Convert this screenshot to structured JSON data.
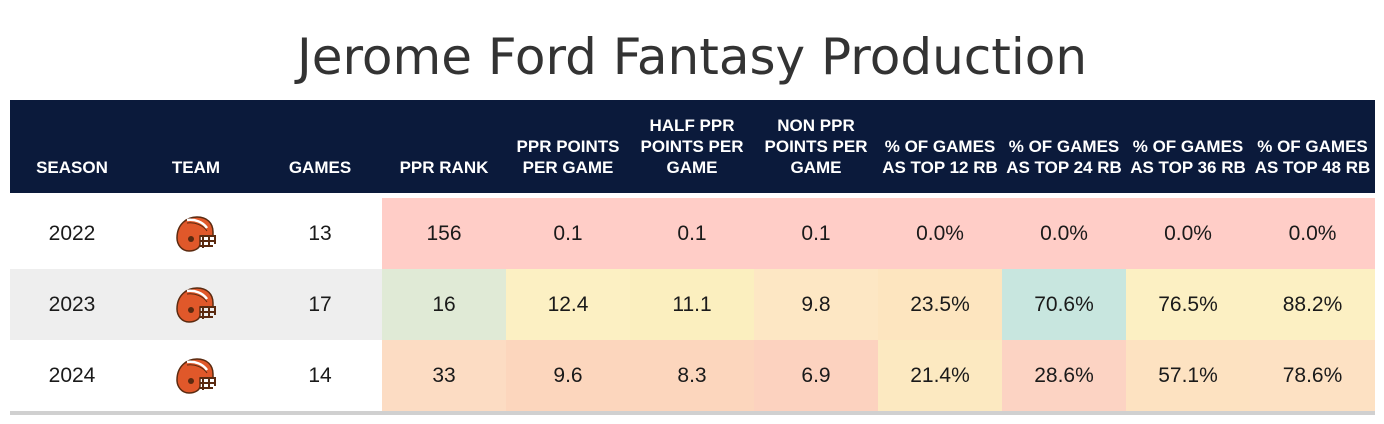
{
  "title": "Jerome Ford Fantasy Production",
  "colors": {
    "header_bg": "#0b1a3b",
    "header_text": "#ffffff",
    "helmet_orange": "#e0582a",
    "helmet_brown": "#5a2a10"
  },
  "columns": [
    "SEASON",
    "TEAM",
    "GAMES",
    "PPR RANK",
    "PPR POINTS PER GAME",
    "HALF PPR POINTS PER GAME",
    "NON PPR POINTS PER GAME",
    "% OF GAMES AS TOP 12 RB",
    "% OF GAMES AS TOP 24 RB",
    "% OF GAMES AS TOP 36 RB",
    "% OF GAMES AS TOP 48 RB"
  ],
  "rows": [
    {
      "season": "2022",
      "team_icon": "browns-helmet-icon",
      "games": "13",
      "ppr_rank": "156",
      "ppr_ppg": "0.1",
      "half_ppr_ppg": "0.1",
      "non_ppr_ppg": "0.1",
      "top12": "0.0%",
      "top24": "0.0%",
      "top36": "0.0%",
      "top48": "0.0%"
    },
    {
      "season": "2023",
      "team_icon": "browns-helmet-icon",
      "games": "17",
      "ppr_rank": "16",
      "ppr_ppg": "12.4",
      "half_ppr_ppg": "11.1",
      "non_ppr_ppg": "9.8",
      "top12": "23.5%",
      "top24": "70.6%",
      "top36": "76.5%",
      "top48": "88.2%"
    },
    {
      "season": "2024",
      "team_icon": "browns-helmet-icon",
      "games": "14",
      "ppr_rank": "33",
      "ppr_ppg": "9.6",
      "half_ppr_ppg": "8.3",
      "non_ppr_ppg": "6.9",
      "top12": "21.4%",
      "top24": "28.6%",
      "top36": "57.1%",
      "top48": "78.6%"
    }
  ],
  "chart_data": {
    "type": "table",
    "title": "Jerome Ford Fantasy Production",
    "columns": [
      "SEASON",
      "TEAM",
      "GAMES",
      "PPR RANK",
      "PPR POINTS PER GAME",
      "HALF PPR POINTS PER GAME",
      "NON PPR POINTS PER GAME",
      "% OF GAMES AS TOP 12 RB",
      "% OF GAMES AS TOP 24 RB",
      "% OF GAMES AS TOP 36 RB",
      "% OF GAMES AS TOP 48 RB"
    ],
    "rows": [
      [
        2022,
        "CLE",
        13,
        156,
        0.1,
        0.1,
        0.1,
        0.0,
        0.0,
        0.0,
        0.0
      ],
      [
        2023,
        "CLE",
        17,
        16,
        12.4,
        11.1,
        9.8,
        23.5,
        70.6,
        76.5,
        88.2
      ],
      [
        2024,
        "CLE",
        14,
        33,
        9.6,
        8.3,
        6.9,
        21.4,
        28.6,
        57.1,
        78.6
      ]
    ]
  }
}
